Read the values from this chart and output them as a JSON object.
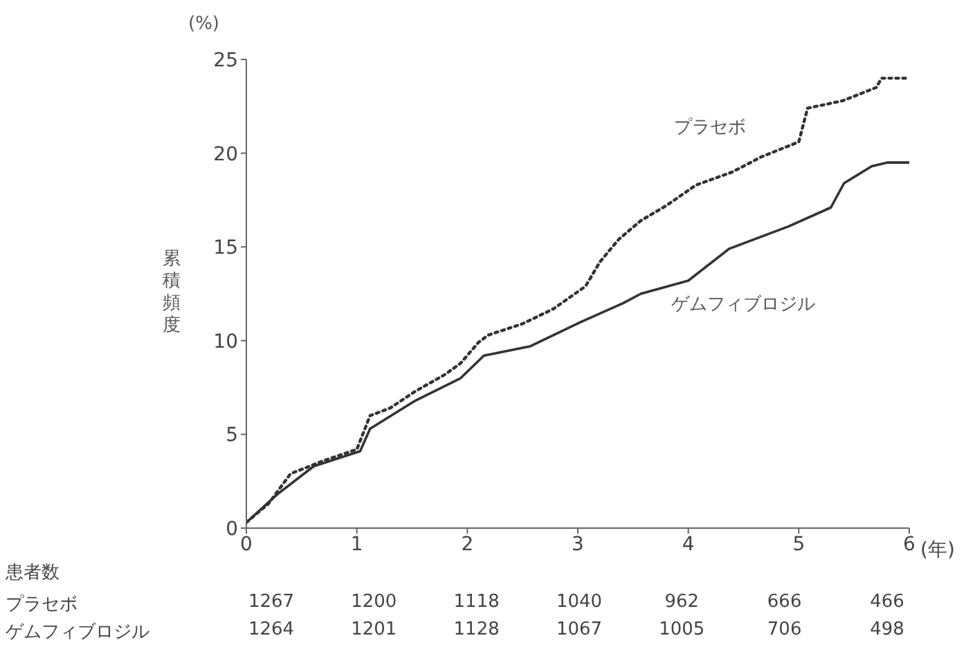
{
  "chart_data": {
    "type": "line",
    "xlabel": "(年)",
    "ylabel": "累積頻度",
    "annotations": [
      "(%)",
      "患者数",
      "プラセボ",
      "1267",
      "1200",
      "1118",
      "1040",
      "962",
      "666",
      "466",
      "ゲムフィブロジル",
      "1264",
      "1201",
      "1128",
      "1067",
      "1005",
      "706",
      "498"
    ],
    "xlim": [
      0,
      6
    ],
    "xticks": [
      0,
      1,
      2,
      3,
      4,
      5,
      6
    ],
    "ylim": [
      0,
      25
    ],
    "yticks": [
      0,
      5,
      10,
      15,
      20,
      25
    ],
    "grid": false,
    "legend": false,
    "marker": "none",
    "series": [
      {
        "name": "プラセボ",
        "color": "#333333",
        "line_style": "dotted",
        "x": [
          0,
          0.2,
          0.4,
          0.7,
          1.0,
          1.12,
          1.3,
          1.53,
          1.8,
          1.94,
          2.1,
          2.19,
          2.5,
          2.78,
          3.07,
          3.2,
          3.37,
          3.57,
          3.8,
          4.07,
          4.4,
          4.66,
          5.0,
          5.08,
          5.4,
          5.7,
          5.75,
          6.0
        ],
        "values": [
          0.3,
          1.3,
          2.9,
          3.6,
          4.2,
          6.0,
          6.4,
          7.3,
          8.2,
          8.8,
          9.9,
          10.3,
          10.9,
          11.7,
          12.9,
          14.2,
          15.4,
          16.4,
          17.2,
          18.3,
          19.0,
          19.8,
          20.6,
          22.4,
          22.8,
          23.5,
          24.0,
          24.0
        ]
      },
      {
        "name": "ゲムフィブロジル",
        "color": "#333333",
        "line_style": "solid",
        "x": [
          0,
          0.28,
          0.61,
          1.03,
          1.12,
          1.53,
          1.94,
          2.15,
          2.57,
          3.03,
          3.41,
          3.57,
          4.0,
          4.37,
          4.91,
          5.29,
          5.41,
          5.66,
          5.8,
          6.0
        ],
        "values": [
          0.3,
          1.8,
          3.3,
          4.1,
          5.3,
          6.8,
          8.0,
          9.2,
          9.7,
          11.0,
          12.0,
          12.5,
          13.2,
          14.9,
          16.1,
          17.1,
          18.4,
          19.3,
          19.5,
          19.5
        ]
      }
    ]
  }
}
